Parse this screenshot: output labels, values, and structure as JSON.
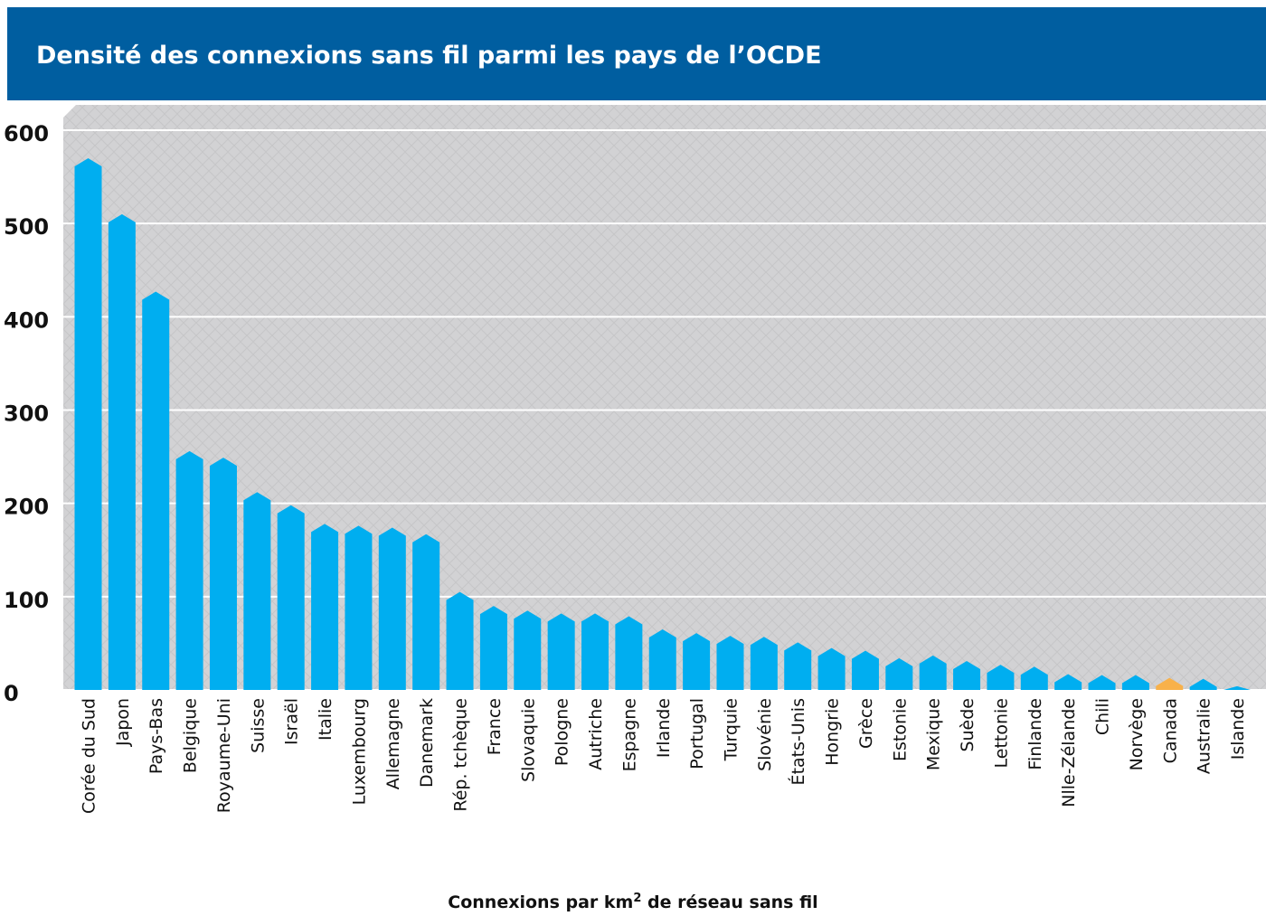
{
  "chart_data": {
    "type": "bar",
    "title": "Densité des connexions sans fil parmi les pays de l’OCDE",
    "xlabel": {
      "before": "Connexions par km",
      "sup": "2",
      "after": " de réseau sans fil"
    },
    "ylabel": "",
    "ylim": [
      0,
      600
    ],
    "yticks": [
      0,
      100,
      200,
      300,
      400,
      500,
      600
    ],
    "grid": true,
    "categories": [
      "Corée du Sud",
      "Japon",
      "Pays-Bas",
      "Belgique",
      "Royaume-Uni",
      "Suisse",
      "Israël",
      "Italie",
      "Luxembourg",
      "Allemagne",
      "Danemark",
      "Rép. tchèque",
      "France",
      "Slovaquie",
      "Pologne",
      "Autriche",
      "Espagne",
      "Irlande",
      "Portugal",
      "Turquie",
      "Slovénie",
      "États-Unis",
      "Hongrie",
      "Grèce",
      "Estonie",
      "Mexique",
      "Suède",
      "Lettonie",
      "Finlande",
      "Nlle-Zélande",
      "Chili",
      "Norvège",
      "Canada",
      "Australie",
      "Islande"
    ],
    "values": [
      570,
      510,
      427,
      256,
      249,
      212,
      198,
      178,
      176,
      174,
      167,
      105,
      90,
      85,
      82,
      82,
      79,
      65,
      61,
      58,
      57,
      51,
      45,
      42,
      34,
      37,
      31,
      27,
      25,
      17,
      16,
      16,
      13,
      12,
      4
    ],
    "highlight": "Canada",
    "colors": {
      "bar": "#00aef0",
      "highlight": "#f8b14a",
      "header": "#005ea0",
      "plot_bg": "#d2d2d4"
    }
  }
}
